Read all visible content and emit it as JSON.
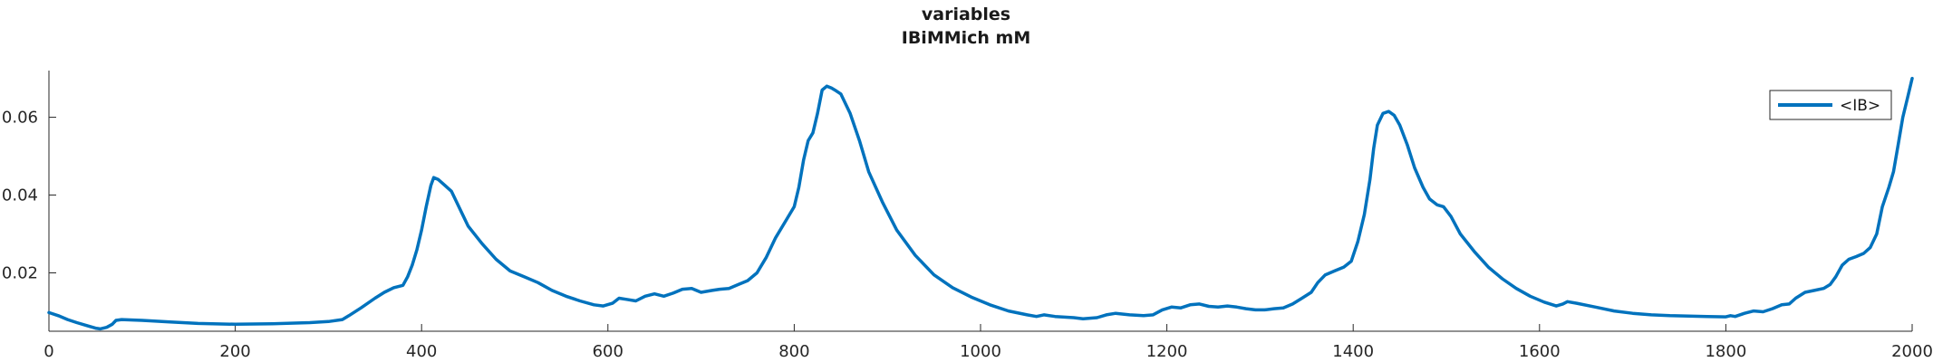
{
  "chart_data": {
    "type": "line",
    "title": "variables",
    "subtitle": "IBiMMich mM",
    "xlabel": "",
    "ylabel": "",
    "xlim": [
      0,
      2000
    ],
    "ylim": [
      0.005,
      0.072
    ],
    "x_ticks": [
      0,
      200,
      400,
      600,
      800,
      1000,
      1200,
      1400,
      1600,
      1800,
      2000
    ],
    "x_tick_labels": [
      "0",
      "200",
      "400",
      "600",
      "800",
      "1000",
      "1200",
      "1400",
      "1600",
      "1800",
      "2000"
    ],
    "y_ticks": [
      0.02,
      0.04,
      0.06
    ],
    "y_tick_labels": [
      "0.02",
      "0.04",
      "0.06"
    ],
    "grid": false,
    "legend_position": "top-right",
    "series": [
      {
        "name": "<IB>",
        "color": "#0072BD",
        "points": [
          [
            0,
            0.0098
          ],
          [
            10,
            0.009
          ],
          [
            20,
            0.008
          ],
          [
            30,
            0.0072
          ],
          [
            40,
            0.0065
          ],
          [
            50,
            0.0058
          ],
          [
            55,
            0.0056
          ],
          [
            62,
            0.006
          ],
          [
            68,
            0.0068
          ],
          [
            72,
            0.0078
          ],
          [
            78,
            0.008
          ],
          [
            100,
            0.0078
          ],
          [
            130,
            0.0074
          ],
          [
            160,
            0.007
          ],
          [
            200,
            0.0068
          ],
          [
            240,
            0.0069
          ],
          [
            280,
            0.0072
          ],
          [
            300,
            0.0075
          ],
          [
            315,
            0.008
          ],
          [
            322,
            0.009
          ],
          [
            335,
            0.011
          ],
          [
            350,
            0.0135
          ],
          [
            360,
            0.015
          ],
          [
            370,
            0.0162
          ],
          [
            380,
            0.0168
          ],
          [
            385,
            0.019
          ],
          [
            390,
            0.022
          ],
          [
            395,
            0.026
          ],
          [
            400,
            0.031
          ],
          [
            405,
            0.037
          ],
          [
            410,
            0.0425
          ],
          [
            413,
            0.0445
          ],
          [
            418,
            0.044
          ],
          [
            425,
            0.0425
          ],
          [
            432,
            0.041
          ],
          [
            440,
            0.037
          ],
          [
            450,
            0.032
          ],
          [
            465,
            0.0275
          ],
          [
            480,
            0.0235
          ],
          [
            495,
            0.0205
          ],
          [
            510,
            0.019
          ],
          [
            525,
            0.0175
          ],
          [
            540,
            0.0155
          ],
          [
            555,
            0.014
          ],
          [
            570,
            0.0128
          ],
          [
            585,
            0.0118
          ],
          [
            595,
            0.0115
          ],
          [
            605,
            0.0122
          ],
          [
            612,
            0.0135
          ],
          [
            620,
            0.0132
          ],
          [
            630,
            0.0128
          ],
          [
            640,
            0.014
          ],
          [
            650,
            0.0146
          ],
          [
            660,
            0.014
          ],
          [
            670,
            0.0148
          ],
          [
            680,
            0.0158
          ],
          [
            690,
            0.016
          ],
          [
            700,
            0.015
          ],
          [
            712,
            0.0155
          ],
          [
            720,
            0.0158
          ],
          [
            730,
            0.016
          ],
          [
            740,
            0.017
          ],
          [
            750,
            0.018
          ],
          [
            760,
            0.02
          ],
          [
            770,
            0.024
          ],
          [
            780,
            0.029
          ],
          [
            790,
            0.033
          ],
          [
            800,
            0.037
          ],
          [
            805,
            0.042
          ],
          [
            810,
            0.049
          ],
          [
            815,
            0.054
          ],
          [
            820,
            0.056
          ],
          [
            825,
            0.061
          ],
          [
            830,
            0.067
          ],
          [
            835,
            0.068
          ],
          [
            840,
            0.0675
          ],
          [
            845,
            0.0668
          ],
          [
            850,
            0.066
          ],
          [
            860,
            0.061
          ],
          [
            870,
            0.054
          ],
          [
            880,
            0.046
          ],
          [
            895,
            0.038
          ],
          [
            910,
            0.031
          ],
          [
            930,
            0.0245
          ],
          [
            950,
            0.0195
          ],
          [
            970,
            0.0162
          ],
          [
            990,
            0.0138
          ],
          [
            1010,
            0.0118
          ],
          [
            1030,
            0.0102
          ],
          [
            1050,
            0.0092
          ],
          [
            1060,
            0.0088
          ],
          [
            1068,
            0.0092
          ],
          [
            1080,
            0.0088
          ],
          [
            1100,
            0.0085
          ],
          [
            1110,
            0.0082
          ],
          [
            1125,
            0.0085
          ],
          [
            1135,
            0.0092
          ],
          [
            1145,
            0.0096
          ],
          [
            1160,
            0.0092
          ],
          [
            1175,
            0.009
          ],
          [
            1185,
            0.0092
          ],
          [
            1195,
            0.0105
          ],
          [
            1205,
            0.0112
          ],
          [
            1215,
            0.011
          ],
          [
            1225,
            0.0118
          ],
          [
            1235,
            0.012
          ],
          [
            1245,
            0.0114
          ],
          [
            1255,
            0.0112
          ],
          [
            1265,
            0.0115
          ],
          [
            1275,
            0.0112
          ],
          [
            1285,
            0.0108
          ],
          [
            1295,
            0.0105
          ],
          [
            1305,
            0.0105
          ],
          [
            1315,
            0.0108
          ],
          [
            1325,
            0.011
          ],
          [
            1335,
            0.012
          ],
          [
            1345,
            0.0135
          ],
          [
            1355,
            0.015
          ],
          [
            1362,
            0.0175
          ],
          [
            1370,
            0.0195
          ],
          [
            1380,
            0.0205
          ],
          [
            1390,
            0.0215
          ],
          [
            1398,
            0.023
          ],
          [
            1405,
            0.028
          ],
          [
            1412,
            0.035
          ],
          [
            1418,
            0.044
          ],
          [
            1422,
            0.052
          ],
          [
            1426,
            0.058
          ],
          [
            1432,
            0.061
          ],
          [
            1438,
            0.0615
          ],
          [
            1444,
            0.0605
          ],
          [
            1450,
            0.058
          ],
          [
            1458,
            0.053
          ],
          [
            1466,
            0.047
          ],
          [
            1475,
            0.042
          ],
          [
            1482,
            0.039
          ],
          [
            1490,
            0.0375
          ],
          [
            1497,
            0.037
          ],
          [
            1505,
            0.0345
          ],
          [
            1515,
            0.03
          ],
          [
            1530,
            0.0255
          ],
          [
            1545,
            0.0215
          ],
          [
            1560,
            0.0185
          ],
          [
            1575,
            0.016
          ],
          [
            1590,
            0.014
          ],
          [
            1605,
            0.0125
          ],
          [
            1618,
            0.0115
          ],
          [
            1625,
            0.012
          ],
          [
            1630,
            0.0126
          ],
          [
            1640,
            0.0122
          ],
          [
            1660,
            0.0112
          ],
          [
            1680,
            0.0102
          ],
          [
            1700,
            0.0096
          ],
          [
            1720,
            0.0092
          ],
          [
            1740,
            0.009
          ],
          [
            1760,
            0.0089
          ],
          [
            1780,
            0.0088
          ],
          [
            1800,
            0.0087
          ],
          [
            1805,
            0.009
          ],
          [
            1810,
            0.0088
          ],
          [
            1820,
            0.0096
          ],
          [
            1830,
            0.0102
          ],
          [
            1840,
            0.01
          ],
          [
            1850,
            0.0108
          ],
          [
            1860,
            0.0118
          ],
          [
            1868,
            0.012
          ],
          [
            1875,
            0.0135
          ],
          [
            1885,
            0.015
          ],
          [
            1895,
            0.0155
          ],
          [
            1905,
            0.016
          ],
          [
            1912,
            0.017
          ],
          [
            1918,
            0.019
          ],
          [
            1925,
            0.022
          ],
          [
            1932,
            0.0235
          ],
          [
            1940,
            0.0242
          ],
          [
            1948,
            0.025
          ],
          [
            1955,
            0.0265
          ],
          [
            1962,
            0.03
          ],
          [
            1968,
            0.037
          ],
          [
            1975,
            0.042
          ],
          [
            1980,
            0.046
          ],
          [
            1985,
            0.053
          ],
          [
            1990,
            0.06
          ],
          [
            1995,
            0.065
          ],
          [
            2000,
            0.07
          ]
        ]
      }
    ]
  }
}
